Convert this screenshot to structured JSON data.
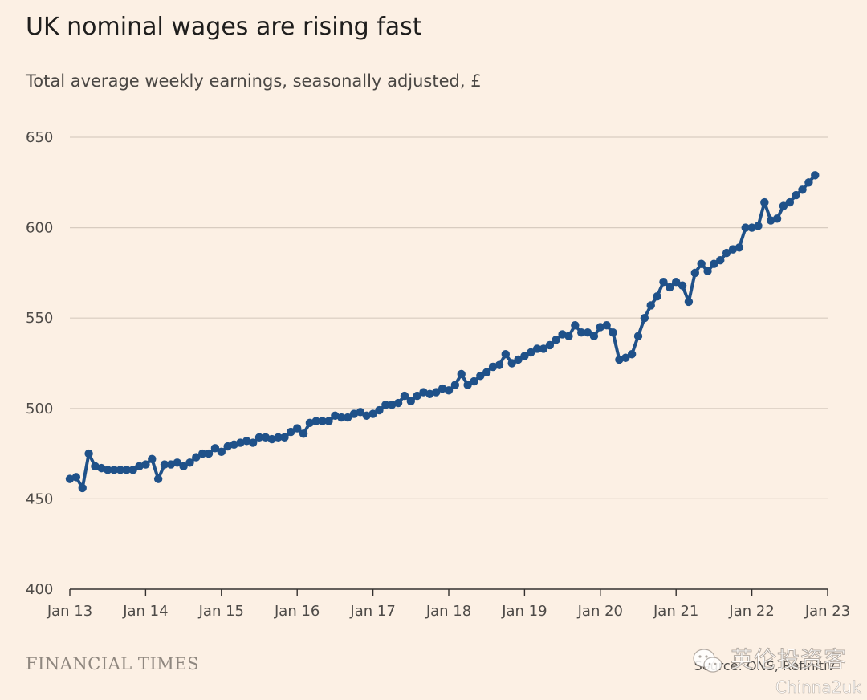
{
  "header": {
    "title": "UK nominal wages are rising fast",
    "subtitle": "Total average weekly earnings, seasonally adjusted, £"
  },
  "footer": {
    "logo_text": "FINANCIAL TIMES",
    "source": "Source: ONS, Refinitiv"
  },
  "watermark": {
    "text_cn": "英伦投资客",
    "text_en": "Chinna2uk"
  },
  "colors": {
    "background": "#fcf0e4",
    "line": "#1f5189",
    "grid": "#d8ccc0",
    "axis": "#33302e"
  },
  "chart_data": {
    "type": "line",
    "title": "UK nominal wages are rising fast",
    "subtitle": "Total average weekly earnings, seasonally adjusted, £",
    "ylim": [
      400,
      650
    ],
    "yticks": [
      400,
      450,
      500,
      550,
      600,
      650
    ],
    "xlim": [
      "Jan 13",
      "Jan 23"
    ],
    "xticks": [
      "Jan 13",
      "Jan 14",
      "Jan 15",
      "Jan 16",
      "Jan 17",
      "Jan 18",
      "Jan 19",
      "Jan 20",
      "Jan 21",
      "Jan 22",
      "Jan 23"
    ],
    "grid": "horizontal",
    "markers": true,
    "series": [
      {
        "start": "Jan 2013",
        "frequency": "monthly",
        "values": [
          461,
          462,
          456,
          475,
          468,
          467,
          466,
          466,
          466,
          466,
          466,
          468,
          469,
          472,
          461,
          469,
          469,
          470,
          468,
          470,
          473,
          475,
          475,
          478,
          476,
          479,
          480,
          481,
          482,
          481,
          484,
          484,
          483,
          484,
          484,
          487,
          489,
          486,
          492,
          493,
          493,
          493,
          496,
          495,
          495,
          497,
          498,
          496,
          497,
          499,
          502,
          502,
          503,
          507,
          504,
          507,
          509,
          508,
          509,
          511,
          510,
          513,
          519,
          513,
          515,
          518,
          520,
          523,
          524,
          530,
          525,
          527,
          529,
          531,
          533,
          533,
          535,
          538,
          541,
          540,
          546,
          542,
          542,
          540,
          545,
          546,
          542,
          527,
          528,
          530,
          540,
          550,
          557,
          562,
          570,
          567,
          570,
          568,
          559,
          575,
          580,
          576,
          580,
          582,
          586,
          588,
          589,
          600,
          600,
          601,
          614,
          604,
          605,
          612,
          614,
          618,
          621,
          625,
          629
        ]
      }
    ]
  }
}
